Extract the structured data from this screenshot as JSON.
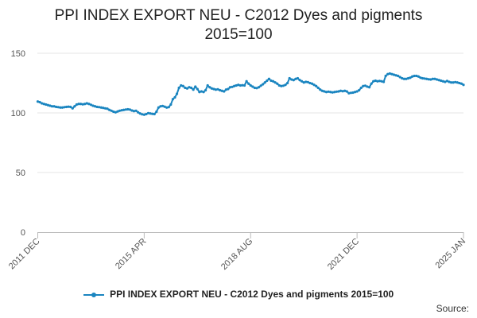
{
  "chart_data": {
    "type": "line",
    "title_lines": [
      "PPI INDEX EXPORT NEU - C2012 Dyes and pigments",
      "2015=100"
    ],
    "xlabel": "",
    "ylabel": "",
    "ylim": [
      0,
      150
    ],
    "yticks": [
      0,
      50,
      100,
      150
    ],
    "x_tick_labels": [
      "2011 DEC",
      "2015 APR",
      "2018 AUG",
      "2021 DEC",
      "2025 JAN"
    ],
    "grid": true,
    "legend_position": "bottom",
    "source_label": "Source:",
    "color": "#1a85c0",
    "series": [
      {
        "name": "PPI INDEX EXPORT NEU - C2012 Dyes and pigments 2015=100",
        "values": [
          109.5,
          109.0,
          108.0,
          107.5,
          107.0,
          106.5,
          106.0,
          105.5,
          105.5,
          105.0,
          104.8,
          104.5,
          104.5,
          104.8,
          105.0,
          105.2,
          105.0,
          103.8,
          105.5,
          107.0,
          107.5,
          107.5,
          107.2,
          107.5,
          108.0,
          107.5,
          106.8,
          106.0,
          105.5,
          105.0,
          104.8,
          104.5,
          104.2,
          103.8,
          103.5,
          102.5,
          101.8,
          101.0,
          100.5,
          101.2,
          101.8,
          102.2,
          102.5,
          102.8,
          103.0,
          102.8,
          102.0,
          101.5,
          101.8,
          100.5,
          99.5,
          98.8,
          98.5,
          99.0,
          99.8,
          99.5,
          99.2,
          99.0,
          101.0,
          104.5,
          105.5,
          105.8,
          105.2,
          104.5,
          104.8,
          107.0,
          111.5,
          113.0,
          116.0,
          121.0,
          123.0,
          122.5,
          121.0,
          120.5,
          121.5,
          121.0,
          119.5,
          122.0,
          120.0,
          117.5,
          118.0,
          117.5,
          119.0,
          123.0,
          121.5,
          120.5,
          120.0,
          119.5,
          119.8,
          119.0,
          118.5,
          118.0,
          119.5,
          120.0,
          121.5,
          121.8,
          122.5,
          123.0,
          123.5,
          123.0,
          123.2,
          123.0,
          126.5,
          124.5,
          123.0,
          122.0,
          121.0,
          120.8,
          121.5,
          122.8,
          124.0,
          125.5,
          127.0,
          128.5,
          127.0,
          126.5,
          125.5,
          124.5,
          123.0,
          122.5,
          122.8,
          123.5,
          125.0,
          129.0,
          128.0,
          127.5,
          128.5,
          129.0,
          127.5,
          126.5,
          125.5,
          126.0,
          125.8,
          125.0,
          124.5,
          123.5,
          122.5,
          121.0,
          119.5,
          118.5,
          118.0,
          117.5,
          117.8,
          117.5,
          117.2,
          117.5,
          117.8,
          118.0,
          118.5,
          118.2,
          118.5,
          118.0,
          116.5,
          116.8,
          117.0,
          117.5,
          118.0,
          119.0,
          121.0,
          122.5,
          122.8,
          122.0,
          121.5,
          124.5,
          126.5,
          127.0,
          126.5,
          126.8,
          126.5,
          126.0,
          131.0,
          132.5,
          133.0,
          132.5,
          132.0,
          131.5,
          131.0,
          130.0,
          129.0,
          128.5,
          128.5,
          129.0,
          129.5,
          130.5,
          131.0,
          131.0,
          130.5,
          129.5,
          129.0,
          128.8,
          128.5,
          128.2,
          128.0,
          128.5,
          128.5,
          128.0,
          127.5,
          127.0,
          126.5,
          126.0,
          126.8,
          126.0,
          125.5,
          125.5,
          125.8,
          125.5,
          125.0,
          124.5,
          123.5
        ]
      }
    ]
  }
}
